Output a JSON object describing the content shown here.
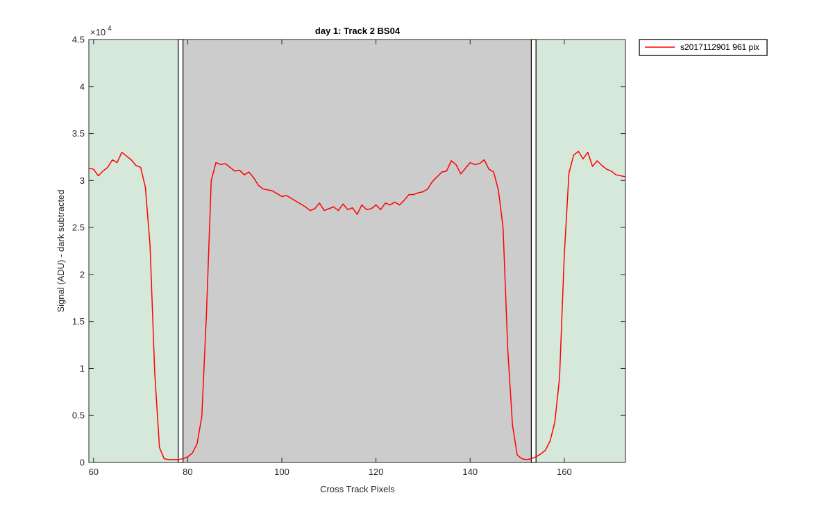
{
  "chart_data": {
    "type": "line",
    "title": "day 1: Track 2  BS04",
    "xlabel": "Cross Track Pixels",
    "ylabel": "Signal (ADU) - dark subtracted",
    "y_exponent_label": "×10",
    "y_exponent_power": "4",
    "xlim": [
      59,
      173
    ],
    "ylim": [
      0,
      45000
    ],
    "x_ticks": [
      60,
      80,
      100,
      120,
      140,
      160
    ],
    "x_tick_labels": [
      "60",
      "80",
      "100",
      "120",
      "140",
      "160"
    ],
    "y_ticks": [
      0,
      5000,
      10000,
      15000,
      20000,
      25000,
      30000,
      35000,
      40000,
      45000
    ],
    "y_tick_labels": [
      "0",
      "0.5",
      "1",
      "1.5",
      "2",
      "2.5",
      "3",
      "3.5",
      "4",
      "4.5"
    ],
    "grid": false,
    "legend_position": "outside-top-right",
    "shaded_regions": [
      {
        "x0": 59,
        "x1": 78,
        "color": "#d5e8da"
      },
      {
        "x0": 79,
        "x1": 153,
        "color": "#cccccc"
      },
      {
        "x0": 154,
        "x1": 173,
        "color": "#d5e8da"
      }
    ],
    "boundary_boxes": [
      {
        "x0": 78,
        "x1": 79
      },
      {
        "x0": 153,
        "x1": 154
      }
    ],
    "series": [
      {
        "name": "s2017112901 961 pix",
        "color": "#ff0000",
        "x": [
          59,
          60,
          61,
          62,
          63,
          64,
          65,
          66,
          67,
          68,
          69,
          70,
          71,
          72,
          73,
          74,
          75,
          76,
          77,
          78,
          79,
          80,
          81,
          82,
          83,
          84,
          85,
          86,
          87,
          88,
          89,
          90,
          91,
          92,
          93,
          94,
          95,
          96,
          97,
          98,
          99,
          100,
          101,
          102,
          103,
          104,
          105,
          106,
          107,
          108,
          109,
          110,
          111,
          112,
          113,
          114,
          115,
          116,
          117,
          118,
          119,
          120,
          121,
          122,
          123,
          124,
          125,
          126,
          127,
          128,
          129,
          130,
          131,
          132,
          133,
          134,
          135,
          136,
          137,
          138,
          139,
          140,
          141,
          142,
          143,
          144,
          145,
          146,
          147,
          148,
          149,
          150,
          151,
          152,
          153,
          154,
          155,
          156,
          157,
          158,
          159,
          160,
          161,
          162,
          163,
          164,
          165,
          166,
          167,
          168,
          169,
          170,
          171,
          172,
          173
        ],
        "values": [
          31300,
          31200,
          30500,
          31000,
          31400,
          32200,
          31900,
          33000,
          32600,
          32200,
          31600,
          31400,
          29300,
          23100,
          9500,
          1600,
          400,
          300,
          300,
          300,
          400,
          600,
          1000,
          2000,
          4900,
          16000,
          30000,
          31900,
          31700,
          31800,
          31400,
          31000,
          31100,
          30600,
          30900,
          30300,
          29500,
          29100,
          29000,
          28900,
          28600,
          28300,
          28400,
          28100,
          27800,
          27500,
          27200,
          26800,
          27000,
          27600,
          26800,
          27000,
          27200,
          26800,
          27500,
          26900,
          27100,
          26400,
          27400,
          26900,
          27000,
          27400,
          26900,
          27600,
          27400,
          27700,
          27400,
          27900,
          28500,
          28500,
          28700,
          28800,
          29100,
          29900,
          30400,
          30900,
          31000,
          32100,
          31700,
          30700,
          31300,
          31900,
          31700,
          31800,
          32200,
          31200,
          30900,
          29000,
          25000,
          12000,
          4000,
          800,
          400,
          300,
          400,
          600,
          900,
          1300,
          2300,
          4300,
          9000,
          22000,
          30800,
          32700,
          33100,
          32300,
          33000,
          31500,
          32100,
          31600,
          31200,
          31000,
          30600,
          30500,
          30400
        ]
      }
    ]
  }
}
